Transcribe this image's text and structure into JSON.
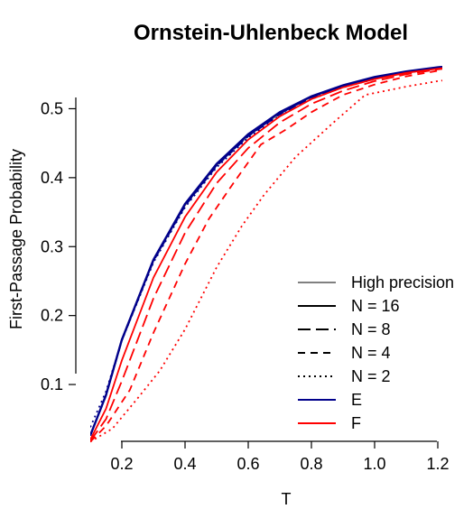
{
  "chart_data": {
    "type": "line",
    "title": "Ornstein-Uhlenbeck Model",
    "xlabel": "T",
    "ylabel": "First-Passage Probability",
    "xlim": [
      0.1,
      1.3
    ],
    "ylim": [
      0.015,
      0.57
    ],
    "xticks": [
      0.2,
      0.4,
      0.6,
      0.8,
      1.0,
      1.2
    ],
    "xtick_labels": [
      "0.2",
      "0.4",
      "0.6",
      "0.8",
      "1.0",
      "1.2"
    ],
    "yticks": [
      0.1,
      0.2,
      0.3,
      0.4,
      0.5
    ],
    "ytick_labels": [
      "0.1",
      "0.2",
      "0.3",
      "0.4",
      "0.5"
    ],
    "grid": false,
    "legend_position": "bottom-right",
    "legend": [
      {
        "label": "High precision",
        "color": "#808080",
        "dash": "solid"
      },
      {
        "label": "N = 16",
        "color": "#000000",
        "dash": "solid"
      },
      {
        "label": "N = 8",
        "color": "#000000",
        "dash": "longdash"
      },
      {
        "label": "N = 4",
        "color": "#000000",
        "dash": "dashed"
      },
      {
        "label": "N = 2",
        "color": "#000000",
        "dash": "dotted"
      },
      {
        "label": "E",
        "color": "#00008B",
        "dash": "solid"
      },
      {
        "label": "F",
        "color": "#FF0000",
        "dash": "solid"
      }
    ],
    "series": [
      {
        "method": "High precision",
        "color": "#808080",
        "dash": "solid",
        "x": [
          0.1,
          0.15,
          0.2,
          0.3,
          0.4,
          0.5,
          0.6,
          0.7,
          0.8,
          0.9,
          1.0,
          1.1,
          1.2,
          1.3
        ],
        "y": [
          0.026,
          0.085,
          0.165,
          0.28,
          0.36,
          0.418,
          0.461,
          0.493,
          0.517,
          0.533,
          0.545,
          0.553,
          0.559,
          0.564
        ]
      },
      {
        "method": "E",
        "N": "16",
        "color": "#00008B",
        "dash": "solid",
        "x": [
          0.1,
          0.15,
          0.2,
          0.3,
          0.4,
          0.5,
          0.6,
          0.7,
          0.8,
          0.9,
          1.0,
          1.1,
          1.2,
          1.3
        ],
        "y": [
          0.026,
          0.085,
          0.165,
          0.281,
          0.362,
          0.42,
          0.463,
          0.495,
          0.518,
          0.534,
          0.546,
          0.554,
          0.56,
          0.565
        ]
      },
      {
        "method": "E",
        "N": "8",
        "color": "#00008B",
        "dash": "longdash",
        "x": [
          0.1,
          0.15,
          0.2,
          0.3,
          0.4,
          0.5,
          0.6,
          0.7,
          0.8,
          0.9,
          1.0,
          1.1,
          1.2,
          1.3
        ],
        "y": [
          0.026,
          0.085,
          0.165,
          0.28,
          0.36,
          0.418,
          0.461,
          0.493,
          0.517,
          0.533,
          0.545,
          0.553,
          0.559,
          0.564
        ]
      },
      {
        "method": "E",
        "N": "4",
        "color": "#00008B",
        "dash": "dashed",
        "x": [
          0.1,
          0.15,
          0.2,
          0.3,
          0.4,
          0.5,
          0.6,
          0.7,
          0.8,
          0.9,
          1.0,
          1.1,
          1.2,
          1.3
        ],
        "y": [
          0.026,
          0.084,
          0.164,
          0.279,
          0.359,
          0.417,
          0.46,
          0.492,
          0.516,
          0.532,
          0.544,
          0.553,
          0.559,
          0.564
        ]
      },
      {
        "method": "E",
        "N": "2",
        "color": "#00008B",
        "dash": "dotted",
        "x": [
          0.1,
          0.15,
          0.2,
          0.3,
          0.4,
          0.5,
          0.6,
          0.7,
          0.8,
          0.9,
          1.0,
          1.1,
          1.2,
          1.3
        ],
        "y": [
          0.038,
          0.09,
          0.164,
          0.277,
          0.357,
          0.415,
          0.458,
          0.49,
          0.514,
          0.531,
          0.543,
          0.552,
          0.558,
          0.563
        ]
      },
      {
        "method": "F",
        "N": "16",
        "color": "#FF0000",
        "dash": "solid",
        "x": [
          0.1,
          0.15,
          0.2,
          0.3,
          0.4,
          0.5,
          0.6,
          0.7,
          0.8,
          0.9,
          1.0,
          1.1,
          1.2,
          1.3
        ],
        "y": [
          0.02,
          0.065,
          0.135,
          0.255,
          0.343,
          0.408,
          0.455,
          0.489,
          0.514,
          0.531,
          0.543,
          0.552,
          0.558,
          0.563
        ]
      },
      {
        "method": "F",
        "N": "8",
        "color": "#FF0000",
        "dash": "longdash",
        "x": [
          0.1,
          0.15,
          0.2,
          0.3,
          0.4,
          0.5,
          0.6,
          0.7,
          0.8,
          0.9,
          1.0,
          1.1,
          1.2,
          1.3
        ],
        "y": [
          0.018,
          0.05,
          0.105,
          0.225,
          0.32,
          0.392,
          0.443,
          0.48,
          0.507,
          0.526,
          0.54,
          0.55,
          0.557,
          0.562
        ]
      },
      {
        "method": "F",
        "N": "4",
        "color": "#FF0000",
        "dash": "dashed",
        "x": [
          0.1,
          0.15,
          0.225,
          0.3,
          0.4,
          0.475,
          0.55,
          0.64,
          0.72,
          0.8,
          0.9,
          1.0,
          1.1,
          1.2,
          1.3
        ],
        "y": [
          0.017,
          0.04,
          0.092,
          0.175,
          0.275,
          0.34,
          0.39,
          0.448,
          0.47,
          0.495,
          0.52,
          0.535,
          0.547,
          0.555,
          0.56
        ]
      },
      {
        "method": "F",
        "N": "2",
        "color": "#FF0000",
        "dash": "dotted",
        "x": [
          0.1,
          0.17,
          0.25,
          0.32,
          0.4,
          0.5,
          0.58,
          0.65,
          0.75,
          0.87,
          0.97,
          1.1,
          1.2,
          1.3
        ],
        "y": [
          0.017,
          0.036,
          0.08,
          0.12,
          0.18,
          0.27,
          0.33,
          0.375,
          0.43,
          0.48,
          0.52,
          0.532,
          0.54,
          0.546
        ]
      }
    ]
  }
}
